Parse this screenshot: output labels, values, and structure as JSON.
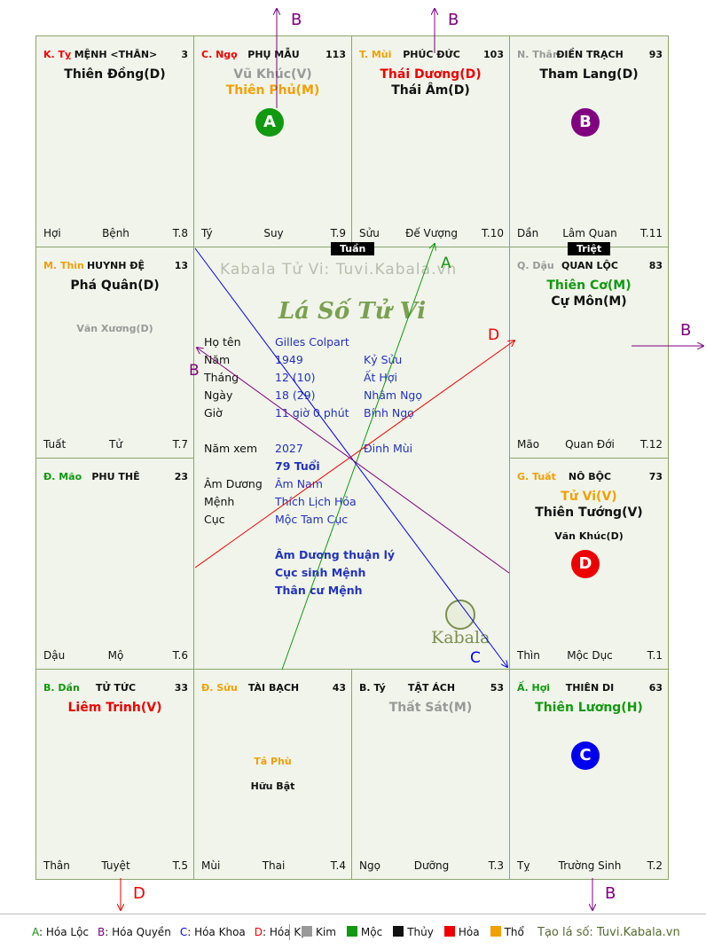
{
  "watermark": "Kabala Tử Vi: Tuvi.Kabala.vn",
  "center_title": "Lá Số Tử Vi",
  "center_logo": "Kabala",
  "colors": {
    "green": "#119911",
    "purple": "#800080",
    "blue": "#0000ee",
    "red": "#ee0000",
    "grey": "#999999",
    "orange": "#f0a000",
    "dark": "#111111",
    "board_border": "#7f9a63"
  },
  "cells": {
    "ty": {
      "branch": "K. Tỵ",
      "branch_color": "#ee0000",
      "palace": "MỆNH <THÂN>",
      "number": "3",
      "stars": [
        {
          "text": "Thiên Đồng(D)",
          "color": "#111111"
        }
      ],
      "footer": {
        "left": "Hợi",
        "mid": "Bệnh",
        "right": "T.8"
      }
    },
    "ngo": {
      "branch": "C. Ngọ",
      "branch_color": "#ee0000",
      "palace": "PHỤ MẪU",
      "number": "113",
      "stars": [
        {
          "text": "Vũ Khúc(V)",
          "color": "#999999"
        },
        {
          "text": "Thiên Phủ(M)",
          "color": "#f0a000"
        }
      ],
      "footer": {
        "left": "Tý",
        "mid": "Suy",
        "right": "T.9"
      }
    },
    "mui": {
      "branch": "T. Mùi",
      "branch_color": "#f0a000",
      "palace": "PHÚC ĐỨC",
      "number": "103",
      "stars": [
        {
          "text": "Thái Dương(D)",
          "color": "#ee0000"
        },
        {
          "text": "Thái Âm(D)",
          "color": "#111111"
        }
      ],
      "footer": {
        "left": "Sửu",
        "mid": "Đế Vượng",
        "right": "T.10"
      }
    },
    "than": {
      "branch": "N. Thân",
      "branch_color": "#999999",
      "palace": "ĐIỀN TRẠCH",
      "number": "93",
      "stars": [
        {
          "text": "Tham Lang(D)",
          "color": "#111111"
        }
      ],
      "footer": {
        "left": "Dần",
        "mid": "Lâm Quan",
        "right": "T.11"
      }
    },
    "thin": {
      "branch": "M. Thìn",
      "branch_color": "#f0a000",
      "palace": "HUYNH ĐỆ",
      "number": "13",
      "stars": [
        {
          "text": "Phá Quân(D)",
          "color": "#111111"
        }
      ],
      "minor": [
        {
          "text": "Văn Xương(D)",
          "color": "#999999"
        }
      ],
      "footer": {
        "left": "Tuất",
        "mid": "Tử",
        "right": "T.7"
      }
    },
    "dau": {
      "branch": "Q. Dậu",
      "branch_color": "#999999",
      "palace": "QUAN LỘC",
      "number": "83",
      "stars": [
        {
          "text": "Thiên Cơ(M)",
          "color": "#119911"
        },
        {
          "text": "Cự Môn(M)",
          "color": "#111111"
        }
      ],
      "footer": {
        "left": "Mão",
        "mid": "Quan Đới",
        "right": "T.12"
      }
    },
    "mao": {
      "branch": "Đ. Mão",
      "branch_color": "#119911",
      "palace": "PHU THÊ",
      "number": "23",
      "stars": [],
      "footer": {
        "left": "Dậu",
        "mid": "Mộ",
        "right": "T.6"
      }
    },
    "tuat": {
      "branch": "G. Tuất",
      "branch_color": "#f0a000",
      "palace": "NÔ BỘC",
      "number": "73",
      "stars": [
        {
          "text": "Tử Vi(V)",
          "color": "#f0a000"
        },
        {
          "text": "Thiên Tướng(V)",
          "color": "#111111"
        }
      ],
      "minor": [
        {
          "text": "Văn Khúc(D)",
          "color": "#111111"
        }
      ],
      "footer": {
        "left": "Thìn",
        "mid": "Mộc Dục",
        "right": "T.1"
      }
    },
    "dan": {
      "branch": "B. Dần",
      "branch_color": "#119911",
      "palace": "TỬ TỨC",
      "number": "33",
      "stars": [
        {
          "text": "Liêm Trinh(V)",
          "color": "#ee0000"
        }
      ],
      "footer": {
        "left": "Thân",
        "mid": "Tuyệt",
        "right": "T.5"
      }
    },
    "suu": {
      "branch": "Đ. Sửu",
      "branch_color": "#f0a000",
      "palace": "TÀI BẠCH",
      "number": "43",
      "stars": [],
      "minor": [
        {
          "text": "Tả Phù",
          "color": "#f0a000"
        },
        {
          "text": "Hữu Bật",
          "color": "#111111"
        }
      ],
      "footer": {
        "left": "Mùi",
        "mid": "Thai",
        "right": "T.4"
      }
    },
    "ty2": {
      "branch": "B. Tý",
      "branch_color": "#111111",
      "palace": "TẬT ÁCH",
      "number": "53",
      "stars": [
        {
          "text": "Thất Sát(M)",
          "color": "#999999"
        }
      ],
      "footer": {
        "left": "Ngọ",
        "mid": "Dưỡng",
        "right": "T.3"
      }
    },
    "hoi": {
      "branch": "Ấ. Hợi",
      "branch_color": "#119911",
      "palace": "THIÊN DI",
      "number": "63",
      "stars": [
        {
          "text": "Thiên Lương(H)",
          "color": "#119911"
        }
      ],
      "footer": {
        "left": "Tỵ",
        "mid": "Trường Sinh",
        "right": "T.2"
      }
    }
  },
  "tags": {
    "tuan": "Tuần",
    "triet": "Triệt"
  },
  "badges": [
    {
      "cell": "ngo",
      "label": "A",
      "color": "#119911"
    },
    {
      "cell": "than",
      "label": "B",
      "color": "#800080"
    },
    {
      "cell": "tuat",
      "label": "D",
      "color": "#ee0000"
    },
    {
      "cell": "hoi",
      "label": "C",
      "color": "#0000ee"
    }
  ],
  "info": {
    "ho_ten": {
      "label": "Họ tên",
      "value": "Gilles Colpart"
    },
    "nam": {
      "label": "Năm",
      "value": "1949",
      "extra": "Kỷ Sửu"
    },
    "thang": {
      "label": "Tháng",
      "value": "12  (10)",
      "extra": "Ất Hợi"
    },
    "ngay": {
      "label": "Ngày",
      "value": "18  (29)",
      "extra": "Nhâm Ngọ"
    },
    "gio": {
      "label": "Giờ",
      "value": "11 giờ 0 phút",
      "extra": "Bính Ngọ"
    },
    "nam_xem": {
      "label": "Năm xem",
      "value": "2027",
      "extra": "Đinh Mùi"
    },
    "tuoi": "79 Tuổi",
    "am_duong": {
      "label": "Âm Dương",
      "value": "Âm Nam"
    },
    "menh": {
      "label": "Mệnh",
      "value": "Thích Lịch Hỏa"
    },
    "cuc": {
      "label": "Cục",
      "value": "Mộc Tam Cục"
    },
    "notes": [
      "Âm Dương thuận lý",
      "Cục sinh Mệnh",
      "Thân cư Mệnh"
    ]
  },
  "arrow_labels": {
    "top_b1": "B",
    "top_b2": "B",
    "right_b": "B",
    "bottom_d": "D",
    "bottom_b": "B",
    "inner_a": "A",
    "inner_b": "B",
    "inner_c": "C",
    "inner_d": "D"
  },
  "legend": {
    "hoa": [
      {
        "key": "A",
        "text": "Hóa Lộc",
        "color": "#119911"
      },
      {
        "key": "B",
        "text": "Hóa Quyền",
        "color": "#800080"
      },
      {
        "key": "C",
        "text": "Hóa Khoa",
        "color": "#0000ee"
      },
      {
        "key": "D",
        "text": "Hóa Kị",
        "color": "#ee0000"
      }
    ],
    "elements": [
      {
        "text": "Kim",
        "color": "#999999"
      },
      {
        "text": "Mộc",
        "color": "#119911"
      },
      {
        "text": "Thủy",
        "color": "#111111"
      },
      {
        "text": "Hỏa",
        "color": "#ee0000"
      },
      {
        "text": "Thổ",
        "color": "#f0a000"
      }
    ],
    "footer_text": "Tạo lá số: Tuvi.Kabala.vn"
  }
}
